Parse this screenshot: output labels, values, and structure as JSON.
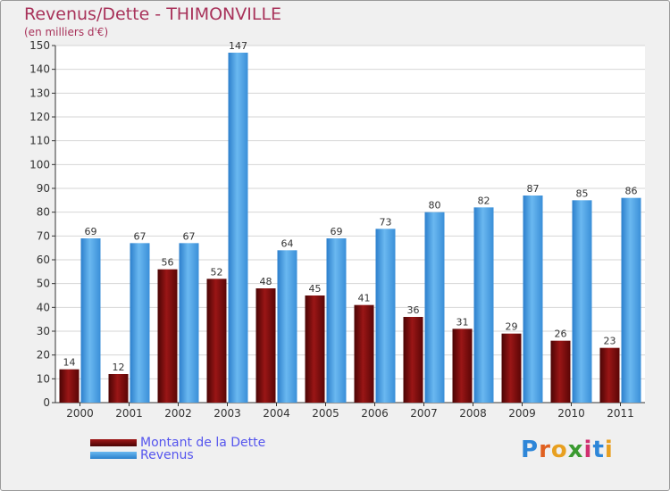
{
  "chart_data": {
    "type": "bar",
    "title": "Revenus/Dette - THIMONVILLE",
    "subtitle": "(en milliers d'€)",
    "categories": [
      "2000",
      "2001",
      "2002",
      "2003",
      "2004",
      "2005",
      "2006",
      "2007",
      "2008",
      "2009",
      "2010",
      "2011"
    ],
    "series": [
      {
        "name": "Montant de la Dette",
        "color": "#7a0a0a",
        "values": [
          14,
          12,
          56,
          52,
          48,
          45,
          41,
          36,
          31,
          29,
          26,
          23
        ]
      },
      {
        "name": "Revenus",
        "color": "#4a9fe0",
        "values": [
          69,
          67,
          67,
          147,
          64,
          69,
          73,
          80,
          82,
          87,
          85,
          86
        ]
      }
    ],
    "ylim": [
      0,
      150
    ],
    "yticks": [
      0,
      10,
      20,
      30,
      40,
      50,
      60,
      70,
      80,
      90,
      100,
      110,
      120,
      130,
      140,
      150
    ],
    "grid": true,
    "legend": "bottom-left"
  },
  "logo": {
    "letters": [
      "P",
      "r",
      "o",
      "x",
      "i",
      "t",
      "i"
    ],
    "colors": [
      "#2e86d8",
      "#e06020",
      "#e8a020",
      "#3a9a30",
      "#d03070",
      "#2e86d8",
      "#e8a020"
    ]
  }
}
